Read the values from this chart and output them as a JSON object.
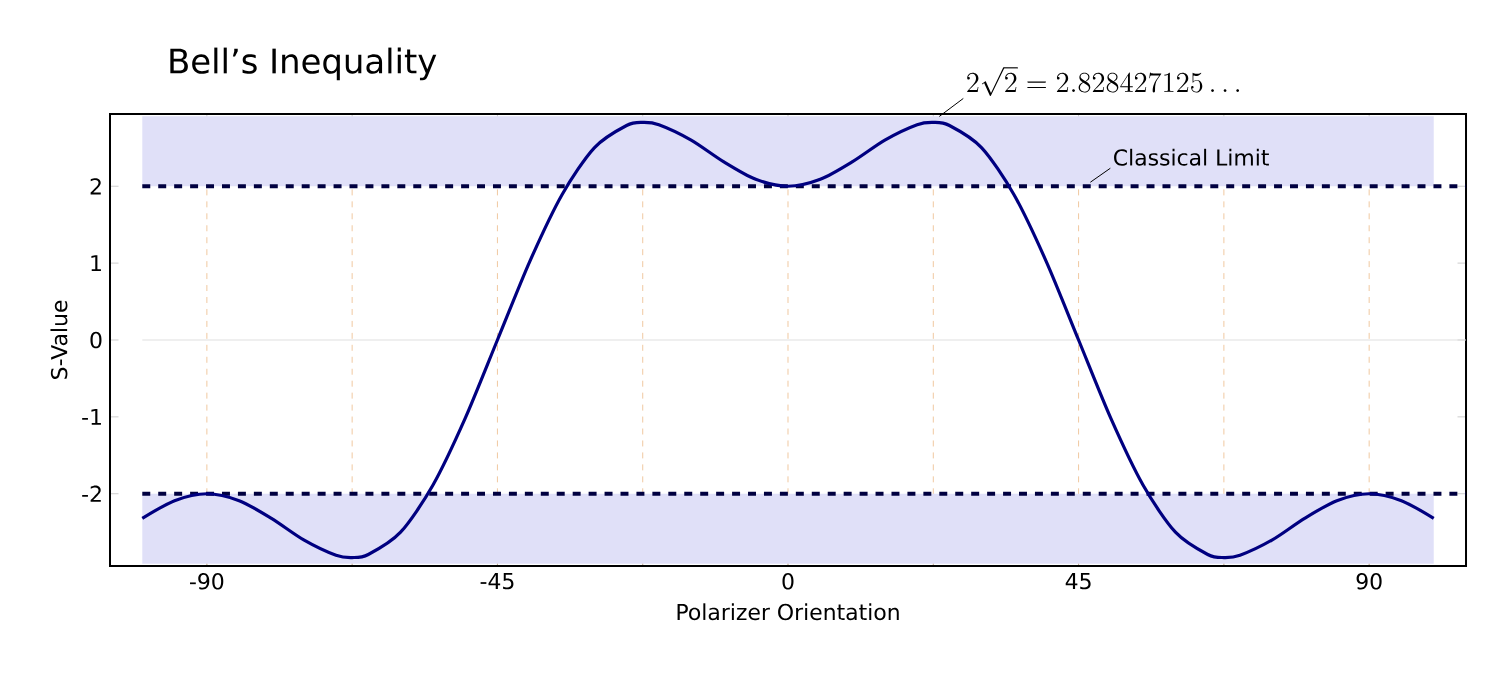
{
  "chart_data": {
    "type": "line",
    "title": "Bell’s Inequality",
    "xlabel": "Polarizer Orientation",
    "ylabel": "S-Value",
    "x": [
      -100,
      -95,
      -90,
      -85,
      -80,
      -75,
      -70,
      -67.5,
      -65,
      -60,
      -55,
      -50,
      -45,
      -40,
      -35,
      -30,
      -25,
      -22.5,
      -20,
      -15,
      -10,
      -5,
      0,
      5,
      10,
      15,
      20,
      22.5,
      25,
      30,
      35,
      40,
      45,
      50,
      55,
      60,
      65,
      67.5,
      70,
      75,
      80,
      85,
      90,
      95,
      100
    ],
    "series": [
      {
        "color": "#000080",
        "values": [
          -2.32,
          -2.09,
          -2,
          -2.09,
          -2.32,
          -2.6,
          -2.8,
          -2.83,
          -2.79,
          -2.5,
          -1.89,
          -1.02,
          0,
          1.02,
          1.89,
          2.5,
          2.79,
          2.83,
          2.8,
          2.6,
          2.32,
          2.09,
          2,
          2.09,
          2.32,
          2.6,
          2.8,
          2.83,
          2.79,
          2.5,
          1.89,
          1.02,
          0,
          -1.02,
          -1.89,
          -2.5,
          -2.79,
          -2.83,
          -2.8,
          -2.6,
          -2.32,
          -2.09,
          -2,
          -2.09,
          -2.32
        ]
      }
    ],
    "xlim": [
      -105,
      105
    ],
    "ylim": [
      -2.94,
      2.94
    ],
    "xticks": [
      -90,
      {
        "value": -67.5,
        "label": null
      },
      -45,
      {
        "value": -22.5,
        "label": null
      },
      0,
      {
        "value": 22.5,
        "label": null
      },
      45,
      {
        "value": 67.5,
        "label": null
      },
      90
    ],
    "yticks": [
      -2,
      -1,
      0,
      1,
      2
    ],
    "grid": "x",
    "bands": [
      {
        "axis": "y",
        "from": 2,
        "to": 2.91,
        "color": "#e0e0f8"
      },
      {
        "axis": "y",
        "from": -2.91,
        "to": -2,
        "color": "#e0e0f8"
      }
    ],
    "ref_lines": [
      {
        "axis": "y",
        "value": 0,
        "color": "#e0e0e0",
        "line_style": "solid"
      },
      {
        "axis": "y",
        "value": 2,
        "label": "Classical Limit",
        "color": "#000040",
        "line_style": "dashed"
      },
      {
        "axis": "y",
        "value": -2,
        "color": "#000040",
        "line_style": "dashed"
      }
    ],
    "annotations": [
      {
        "text": "2\\sqrt{2} = 2.828427125\\ldots",
        "x": 22.5,
        "y": 2.83
      }
    ]
  }
}
